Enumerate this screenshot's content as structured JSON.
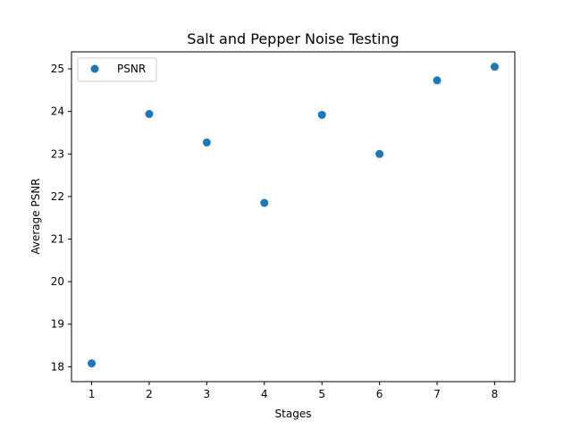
{
  "chart_data": {
    "type": "scatter",
    "title": "Salt and Pepper Noise Testing",
    "xlabel": "Stages",
    "ylabel": "Average PSNR",
    "xlim": [
      0.65,
      8.35
    ],
    "ylim": [
      17.65,
      25.4
    ],
    "xticks": [
      1,
      2,
      3,
      4,
      5,
      6,
      7,
      8
    ],
    "yticks": [
      18,
      19,
      20,
      21,
      22,
      23,
      24,
      25
    ],
    "grid": false,
    "legend_position": "top-left",
    "series": [
      {
        "name": "PSNR",
        "color": "#1f77b4",
        "x": [
          1,
          2,
          3,
          4,
          5,
          6,
          7,
          8
        ],
        "y": [
          18.08,
          23.94,
          23.27,
          21.85,
          23.92,
          23.0,
          24.73,
          25.05
        ]
      }
    ]
  }
}
